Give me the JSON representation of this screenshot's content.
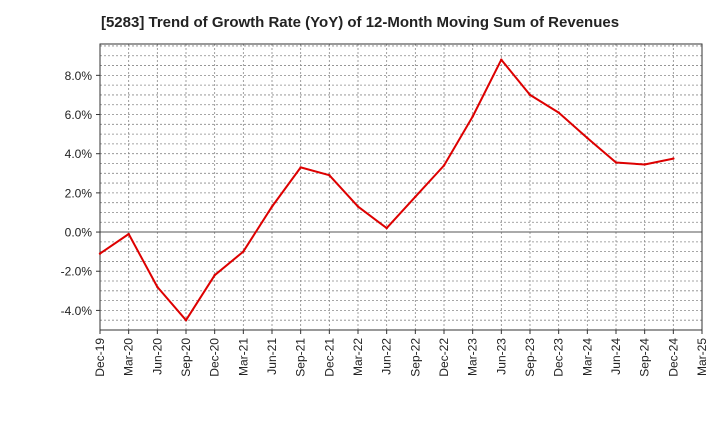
{
  "chart_data": {
    "type": "line",
    "title": "[5283]  Trend of Growth Rate (YoY) of 12-Month Moving Sum of Revenues",
    "xlabel": "",
    "ylabel": "",
    "categories": [
      "Dec-19",
      "Mar-20",
      "Jun-20",
      "Sep-20",
      "Dec-20",
      "Mar-21",
      "Jun-21",
      "Sep-21",
      "Dec-21",
      "Mar-22",
      "Jun-22",
      "Sep-22",
      "Dec-22",
      "Mar-23",
      "Jun-23",
      "Sep-23",
      "Dec-23",
      "Mar-24",
      "Jun-24",
      "Sep-24",
      "Dec-24",
      "Mar-25"
    ],
    "series": [
      {
        "values": [
          -1.1,
          -0.1,
          -2.8,
          -4.5,
          -2.2,
          -1.0,
          1.3,
          3.3,
          2.9,
          1.3,
          0.2,
          1.8,
          3.4,
          5.9,
          8.8,
          7.0,
          6.1,
          4.8,
          3.55,
          3.45,
          3.75,
          null
        ]
      }
    ],
    "ylim": [
      -5.0,
      9.6
    ],
    "yticks": [
      -4.0,
      -2.0,
      0.0,
      2.0,
      4.0,
      6.0,
      8.0
    ],
    "ytick_labels": [
      "-4.0%",
      "-2.0%",
      "0.0%",
      "2.0%",
      "4.0%",
      "6.0%",
      "8.0%"
    ],
    "grid": true,
    "line_color": "#dd0000"
  }
}
